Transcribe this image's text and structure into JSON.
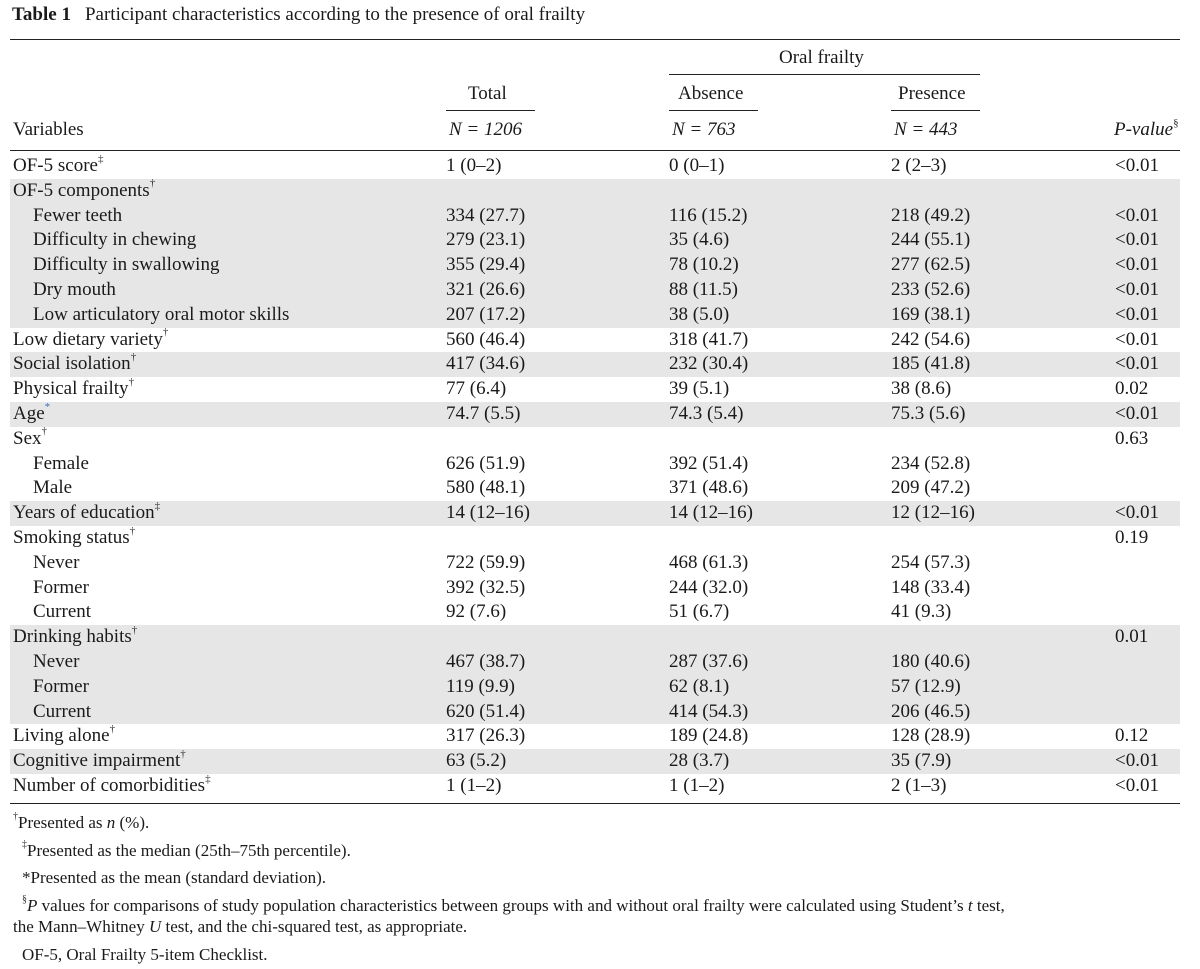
{
  "caption": {
    "label": "Table 1",
    "title": "Participant characteristics according to the presence of oral frailty"
  },
  "header": {
    "group": "Oral frailty",
    "variables": "Variables",
    "total": "Total",
    "absence": "Absence",
    "presence": "Presence",
    "n_total": "N = 1206",
    "n_absence": "N = 763",
    "n_presence": "N = 443",
    "pvalue": "P-value",
    "pvalue_mark": "§"
  },
  "rows": [
    {
      "var": "OF-5 score",
      "mark": "‡",
      "indent": false,
      "shade": false,
      "total": "1 (0–2)",
      "absence": "0 (0–1)",
      "presence": "2 (2–3)",
      "p": "<0.01"
    },
    {
      "var": "OF-5 components",
      "mark": "†",
      "indent": false,
      "shade": true,
      "total": "",
      "absence": "",
      "presence": "",
      "p": ""
    },
    {
      "var": "Fewer teeth",
      "mark": "",
      "indent": true,
      "shade": true,
      "total": "334 (27.7)",
      "absence": "116 (15.2)",
      "presence": "218 (49.2)",
      "p": "<0.01"
    },
    {
      "var": "Difficulty in chewing",
      "mark": "",
      "indent": true,
      "shade": true,
      "total": "279 (23.1)",
      "absence": "35 (4.6)",
      "presence": "244 (55.1)",
      "p": "<0.01"
    },
    {
      "var": "Difficulty in swallowing",
      "mark": "",
      "indent": true,
      "shade": true,
      "total": "355 (29.4)",
      "absence": "78 (10.2)",
      "presence": "277 (62.5)",
      "p": "<0.01"
    },
    {
      "var": "Dry mouth",
      "mark": "",
      "indent": true,
      "shade": true,
      "total": "321 (26.6)",
      "absence": "88 (11.5)",
      "presence": "233 (52.6)",
      "p": "<0.01"
    },
    {
      "var": "Low articulatory oral motor skills",
      "mark": "",
      "indent": true,
      "shade": true,
      "total": "207 (17.2)",
      "absence": "38 (5.0)",
      "presence": "169 (38.1)",
      "p": "<0.01"
    },
    {
      "var": "Low dietary variety",
      "mark": "†",
      "indent": false,
      "shade": false,
      "total": "560 (46.4)",
      "absence": "318 (41.7)",
      "presence": "242 (54.6)",
      "p": "<0.01"
    },
    {
      "var": "Social isolation",
      "mark": "†",
      "indent": false,
      "shade": true,
      "total": "417 (34.6)",
      "absence": "232 (30.4)",
      "presence": "185 (41.8)",
      "p": "<0.01"
    },
    {
      "var": "Physical frailty",
      "mark": "†",
      "indent": false,
      "shade": false,
      "total": "77 (6.4)",
      "absence": "39 (5.1)",
      "presence": "38 (8.6)",
      "p": "0.02"
    },
    {
      "var": "Age",
      "mark": "*",
      "indent": false,
      "shade": true,
      "total": "74.7 (5.5)",
      "absence": "74.3 (5.4)",
      "presence": "75.3 (5.6)",
      "p": "<0.01"
    },
    {
      "var": "Sex",
      "mark": "†",
      "indent": false,
      "shade": false,
      "total": "",
      "absence": "",
      "presence": "",
      "p": "0.63"
    },
    {
      "var": "Female",
      "mark": "",
      "indent": true,
      "shade": false,
      "total": "626 (51.9)",
      "absence": "392 (51.4)",
      "presence": "234 (52.8)",
      "p": ""
    },
    {
      "var": "Male",
      "mark": "",
      "indent": true,
      "shade": false,
      "total": "580 (48.1)",
      "absence": "371 (48.6)",
      "presence": "209 (47.2)",
      "p": ""
    },
    {
      "var": "Years of education",
      "mark": "‡",
      "indent": false,
      "shade": true,
      "total": "14 (12–16)",
      "absence": "14 (12–16)",
      "presence": "12 (12–16)",
      "p": "<0.01"
    },
    {
      "var": "Smoking status",
      "mark": "†",
      "indent": false,
      "shade": false,
      "total": "",
      "absence": "",
      "presence": "",
      "p": "0.19"
    },
    {
      "var": "Never",
      "mark": "",
      "indent": true,
      "shade": false,
      "total": "722 (59.9)",
      "absence": "468 (61.3)",
      "presence": "254 (57.3)",
      "p": ""
    },
    {
      "var": "Former",
      "mark": "",
      "indent": true,
      "shade": false,
      "total": "392 (32.5)",
      "absence": "244 (32.0)",
      "presence": "148 (33.4)",
      "p": ""
    },
    {
      "var": "Current",
      "mark": "",
      "indent": true,
      "shade": false,
      "total": "92 (7.6)",
      "absence": "51 (6.7)",
      "presence": "41 (9.3)",
      "p": ""
    },
    {
      "var": "Drinking habits",
      "mark": "†",
      "indent": false,
      "shade": true,
      "total": "",
      "absence": "",
      "presence": "",
      "p": "0.01"
    },
    {
      "var": "Never",
      "mark": "",
      "indent": true,
      "shade": true,
      "total": "467 (38.7)",
      "absence": "287 (37.6)",
      "presence": "180 (40.6)",
      "p": ""
    },
    {
      "var": "Former",
      "mark": "",
      "indent": true,
      "shade": true,
      "total": "119 (9.9)",
      "absence": "62 (8.1)",
      "presence": "57 (12.9)",
      "p": ""
    },
    {
      "var": "Current",
      "mark": "",
      "indent": true,
      "shade": true,
      "total": "620 (51.4)",
      "absence": "414 (54.3)",
      "presence": "206 (46.5)",
      "p": ""
    },
    {
      "var": "Living alone",
      "mark": "†",
      "indent": false,
      "shade": false,
      "total": "317 (26.3)",
      "absence": "189 (24.8)",
      "presence": "128 (28.9)",
      "p": "0.12"
    },
    {
      "var": "Cognitive impairment",
      "mark": "†",
      "indent": false,
      "shade": true,
      "total": "63 (5.2)",
      "absence": "28 (3.7)",
      "presence": "35 (7.9)",
      "p": "<0.01"
    },
    {
      "var": "Number of comorbidities",
      "mark": "‡",
      "indent": false,
      "shade": false,
      "total": "1 (1–2)",
      "absence": "1 (1–2)",
      "presence": "2 (1–3)",
      "p": "<0.01"
    }
  ],
  "footnotes": {
    "f1_mark": "†",
    "f1_a": "Presented as ",
    "f1_n": "n",
    "f1_b": " (%).",
    "f2_mark": "‡",
    "f2": "Presented as the median (25th–75th percentile).",
    "f3": "*Presented as the mean (standard deviation).",
    "f4_mark": "§",
    "f4_P": "P",
    "f4_a": " values for comparisons of study population characteristics between groups with and without oral frailty were calculated using Student’s ",
    "f4_t": "t",
    "f4_b": " test,",
    "f4_c": "the Mann–Whitney ",
    "f4_U": "U",
    "f4_d": " test, and the chi-squared test, as appropriate.",
    "f5": "OF-5, Oral Frailty 5-item Checklist."
  }
}
